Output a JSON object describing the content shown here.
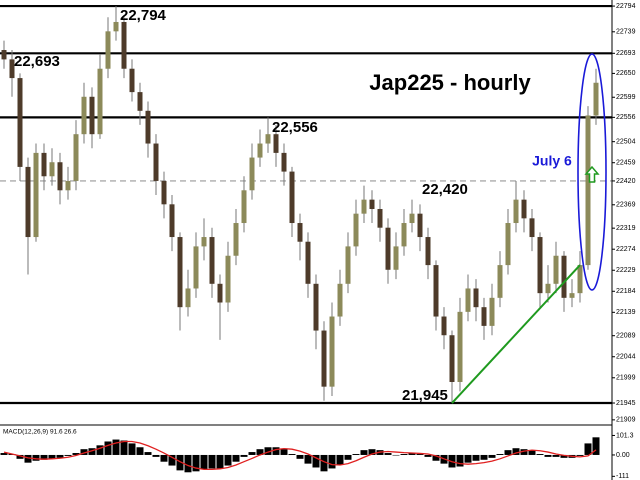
{
  "chart_data": {
    "type": "candlestick",
    "title": "Jap225 - hourly",
    "annotation": "July 6",
    "up_color": "#8c8a5a",
    "down_color": "#4e3b2a",
    "wick_color": "#777777",
    "open": [
      22700,
      22680,
      22640,
      22450,
      22300,
      22480,
      22430,
      22460,
      22400,
      22420,
      22520,
      22600,
      22520,
      22660,
      22740,
      22760,
      22660,
      22610,
      22570,
      22500,
      22420,
      22370,
      22300,
      22150,
      22190,
      22280,
      22300,
      22200,
      22160,
      22260,
      22330,
      22400,
      22470,
      22500,
      22520,
      22480,
      22440,
      22330,
      22290,
      22200,
      22100,
      21980,
      22130,
      22200,
      22280,
      22350,
      22380,
      22360,
      22320,
      22230,
      22280,
      22330,
      22350,
      22300,
      22240,
      22130,
      22090,
      21990,
      22140,
      22190,
      22150,
      22110,
      22170,
      22240,
      22330,
      22380,
      22340,
      22300,
      22180,
      22200,
      22260,
      22170,
      22180,
      22240,
      22560
    ],
    "high": [
      22720,
      22700,
      22650,
      22470,
      22500,
      22500,
      22490,
      22480,
      22450,
      22550,
      22630,
      22620,
      22690,
      22770,
      22794,
      22770,
      22680,
      22630,
      22590,
      22520,
      22440,
      22390,
      22310,
      22230,
      22310,
      22340,
      22320,
      22220,
      22290,
      22360,
      22430,
      22500,
      22530,
      22556,
      22540,
      22500,
      22450,
      22350,
      22310,
      22220,
      22120,
      22160,
      22230,
      22310,
      22380,
      22410,
      22400,
      22380,
      22340,
      22310,
      22360,
      22380,
      22370,
      22320,
      22250,
      22150,
      22100,
      22170,
      22220,
      22210,
      22170,
      22200,
      22270,
      22360,
      22420,
      22400,
      22360,
      22310,
      22240,
      22290,
      22270,
      22210,
      22270,
      22580,
      22660
    ],
    "low": [
      22660,
      22600,
      22420,
      22220,
      22290,
      22400,
      22410,
      22370,
      22380,
      22400,
      22500,
      22490,
      22510,
      22640,
      22720,
      22640,
      22590,
      22540,
      22470,
      22390,
      22340,
      22270,
      22100,
      22130,
      22170,
      22250,
      22170,
      22080,
      22140,
      22240,
      22310,
      22380,
      22450,
      22480,
      22450,
      22410,
      22300,
      22250,
      22170,
      22060,
      21950,
      21960,
      22110,
      22180,
      22260,
      22330,
      22330,
      22290,
      22200,
      22210,
      22260,
      22310,
      22270,
      22210,
      22100,
      22060,
      21945,
      21970,
      22120,
      22120,
      22080,
      22090,
      22150,
      22220,
      22310,
      22310,
      22270,
      22150,
      22160,
      22180,
      22140,
      22150,
      22160,
      22230,
      22540
    ],
    "close": [
      22680,
      22640,
      22450,
      22300,
      22480,
      22430,
      22460,
      22400,
      22420,
      22520,
      22600,
      22520,
      22660,
      22740,
      22760,
      22660,
      22610,
      22570,
      22500,
      22420,
      22370,
      22300,
      22150,
      22190,
      22280,
      22300,
      22200,
      22160,
      22260,
      22330,
      22400,
      22470,
      22500,
      22520,
      22480,
      22440,
      22330,
      22290,
      22200,
      22100,
      21980,
      22130,
      22200,
      22280,
      22350,
      22380,
      22360,
      22320,
      22230,
      22280,
      22330,
      22350,
      22300,
      22240,
      22130,
      22090,
      21990,
      22140,
      22190,
      22150,
      22110,
      22170,
      22240,
      22330,
      22380,
      22340,
      22300,
      22180,
      22200,
      22260,
      22170,
      22180,
      22240,
      22560,
      22630
    ],
    "ylim": [
      21898,
      22807
    ],
    "yticks": [
      22794,
      22739,
      22693,
      22650,
      22599,
      22556,
      22504,
      22459,
      22420,
      22369,
      22319,
      22274,
      22229,
      22184,
      22139,
      22089,
      22044,
      21999,
      21945,
      21909
    ],
    "levels": [
      {
        "value": 22794,
        "label": "22,794",
        "style": "solid"
      },
      {
        "value": 22693,
        "label": "22,693",
        "style": "solid"
      },
      {
        "value": 22556,
        "label": "22,556",
        "style": "solid"
      },
      {
        "value": 22420,
        "label": "22,420",
        "style": "dashed"
      },
      {
        "value": 21945,
        "label": "21,945",
        "style": "solid"
      }
    ],
    "trendline": {
      "color": "#1f9a1f",
      "x": [
        56,
        72
      ],
      "y": [
        21945,
        22240
      ]
    },
    "indicator": {
      "title": "MACD(12,26,9)",
      "histogram_color": "#000000",
      "signal_color": "#e02020",
      "ylim": [
        -130,
        140
      ],
      "yticks": [
        101.3,
        {
          "value": 0,
          "label": "0.00"
        },
        -111
      ],
      "histogram": [
        10,
        5,
        -20,
        -40,
        -30,
        -25,
        -20,
        -15,
        -5,
        10,
        30,
        35,
        50,
        70,
        80,
        75,
        60,
        40,
        15,
        -10,
        -35,
        -55,
        -80,
        -90,
        -85,
        -75,
        -70,
        -70,
        -55,
        -35,
        -10,
        15,
        30,
        40,
        40,
        30,
        5,
        -20,
        -45,
        -65,
        -85,
        -70,
        -50,
        -25,
        5,
        25,
        30,
        25,
        10,
        0,
        5,
        10,
        5,
        -10,
        -30,
        -45,
        -65,
        -60,
        -40,
        -30,
        -25,
        -15,
        5,
        25,
        35,
        30,
        25,
        5,
        -10,
        -10,
        -15,
        -15,
        -5,
        60,
        91.6
      ],
      "signal": [
        15,
        5,
        -5,
        -15,
        -20,
        -22,
        -20,
        -17,
        -12,
        -3,
        10,
        22,
        35,
        50,
        62,
        70,
        70,
        62,
        48,
        30,
        10,
        -12,
        -35,
        -55,
        -68,
        -75,
        -75,
        -72,
        -65,
        -52,
        -35,
        -18,
        0,
        15,
        28,
        33,
        30,
        20,
        5,
        -15,
        -35,
        -50,
        -52,
        -45,
        -30,
        -12,
        5,
        15,
        18,
        15,
        12,
        10,
        8,
        5,
        -5,
        -20,
        -35,
        -45,
        -48,
        -45,
        -40,
        -32,
        -20,
        -5,
        10,
        20,
        25,
        22,
        15,
        5,
        -2,
        -7,
        -10,
        -5,
        26.6
      ]
    }
  }
}
